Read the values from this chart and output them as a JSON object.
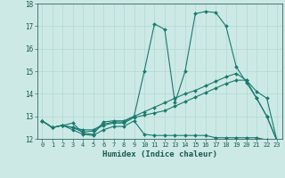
{
  "xlabel": "Humidex (Indice chaleur)",
  "bg_color": "#cce9e5",
  "grid_color": "#b0d8d2",
  "line_color": "#1a7a6e",
  "xlim": [
    -0.5,
    23.5
  ],
  "ylim": [
    12,
    18
  ],
  "yticks": [
    12,
    13,
    14,
    15,
    16,
    17,
    18
  ],
  "xticks": [
    0,
    1,
    2,
    3,
    4,
    5,
    6,
    7,
    8,
    9,
    10,
    11,
    12,
    13,
    14,
    15,
    16,
    17,
    18,
    19,
    20,
    21,
    22,
    23
  ],
  "line1_x": [
    0,
    1,
    2,
    3,
    4,
    5,
    6,
    7,
    8,
    9,
    10,
    11,
    12,
    13,
    14,
    15,
    16,
    17,
    18,
    19,
    20,
    21,
    22,
    23
  ],
  "line1_y": [
    12.8,
    12.5,
    12.6,
    12.7,
    12.25,
    12.2,
    12.75,
    12.8,
    12.8,
    13.0,
    15.0,
    17.1,
    16.85,
    13.6,
    15.0,
    17.55,
    17.65,
    17.6,
    17.0,
    15.2,
    14.5,
    13.8,
    13.0,
    11.9
  ],
  "line2_x": [
    0,
    1,
    2,
    3,
    4,
    5,
    6,
    7,
    8,
    9,
    10,
    11,
    12,
    13,
    14,
    15,
    16,
    17,
    18,
    19,
    20,
    21,
    22,
    23
  ],
  "line2_y": [
    12.8,
    12.5,
    12.6,
    12.4,
    12.2,
    12.15,
    12.4,
    12.55,
    12.55,
    12.8,
    12.2,
    12.15,
    12.15,
    12.15,
    12.15,
    12.15,
    12.15,
    12.05,
    12.05,
    12.05,
    12.05,
    12.05,
    11.95,
    11.9
  ],
  "line3_x": [
    0,
    1,
    2,
    3,
    4,
    5,
    6,
    7,
    8,
    9,
    10,
    11,
    12,
    13,
    14,
    15,
    16,
    17,
    18,
    19,
    20,
    21,
    22,
    23
  ],
  "line3_y": [
    12.8,
    12.5,
    12.6,
    12.5,
    12.3,
    12.35,
    12.6,
    12.7,
    12.7,
    12.95,
    13.05,
    13.15,
    13.25,
    13.45,
    13.65,
    13.85,
    14.05,
    14.25,
    14.45,
    14.6,
    14.6,
    14.1,
    13.8,
    11.9
  ],
  "line4_x": [
    0,
    1,
    2,
    3,
    4,
    5,
    6,
    7,
    8,
    9,
    10,
    11,
    12,
    13,
    14,
    15,
    16,
    17,
    18,
    19,
    20,
    21,
    22,
    23
  ],
  "line4_y": [
    12.8,
    12.5,
    12.6,
    12.5,
    12.4,
    12.4,
    12.65,
    12.75,
    12.75,
    13.0,
    13.2,
    13.4,
    13.6,
    13.8,
    14.0,
    14.15,
    14.35,
    14.55,
    14.75,
    14.9,
    14.6,
    13.8,
    13.0,
    11.9
  ]
}
